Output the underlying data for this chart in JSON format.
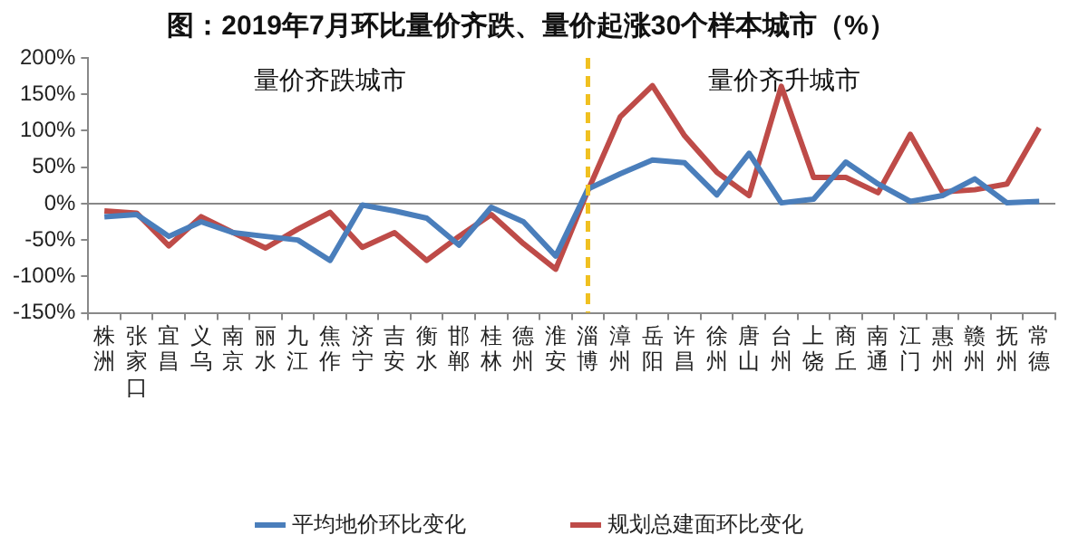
{
  "chart_data": {
    "type": "line",
    "title": "图：2019年7月环比量价齐跌、量价起涨30个样本城市（%）",
    "categories": [
      "株洲",
      "张家口",
      "宜昌",
      "义乌",
      "南京",
      "丽水",
      "九江",
      "焦作",
      "济宁",
      "吉安",
      "衡水",
      "邯郸",
      "桂林",
      "德州",
      "淮安",
      "淄博",
      "漳州",
      "岳阳",
      "许昌",
      "徐州",
      "唐山",
      "台州",
      "上饶",
      "商丘",
      "南通",
      "江门",
      "惠州",
      "赣州",
      "抚州",
      "常德"
    ],
    "series": [
      {
        "name": "平均地价环比变化",
        "color": "#4a7ebb",
        "values": [
          -18,
          -15,
          -45,
          -25,
          -40,
          -45,
          -50,
          -78,
          -2,
          -10,
          -20,
          -57,
          -5,
          -25,
          -72,
          20,
          41,
          60,
          56,
          12,
          69,
          1,
          6,
          57,
          27,
          3,
          11,
          34,
          1,
          3
        ]
      },
      {
        "name": "规划总建面环比变化",
        "color": "#be4b48",
        "values": [
          -10,
          -13,
          -58,
          -18,
          -40,
          -61,
          -35,
          -12,
          -60,
          -40,
          -78,
          -45,
          -15,
          -55,
          -90,
          18,
          119,
          162,
          93,
          43,
          11,
          161,
          36,
          36,
          15,
          95,
          16,
          19,
          27,
          104
        ]
      }
    ],
    "ylim": [
      -150,
      200
    ],
    "yticks": [
      {
        "value": -150,
        "label": "-150%"
      },
      {
        "value": -100,
        "label": "-100%"
      },
      {
        "value": -50,
        "label": "-50%"
      },
      {
        "value": 0,
        "label": "0%"
      },
      {
        "value": 50,
        "label": "50%"
      },
      {
        "value": 100,
        "label": "100%"
      },
      {
        "value": 150,
        "label": "150%"
      },
      {
        "value": 200,
        "label": "200%"
      }
    ],
    "ref_lines": [
      {
        "axis": "x",
        "value": "淄博",
        "label": null,
        "color": "#f0c020",
        "line_style": "dashed"
      }
    ],
    "annotations": [
      "量价齐跌城市",
      "量价齐升城市"
    ],
    "grid": false,
    "legend": "bottom",
    "marker": "none",
    "line_style": "solid"
  }
}
